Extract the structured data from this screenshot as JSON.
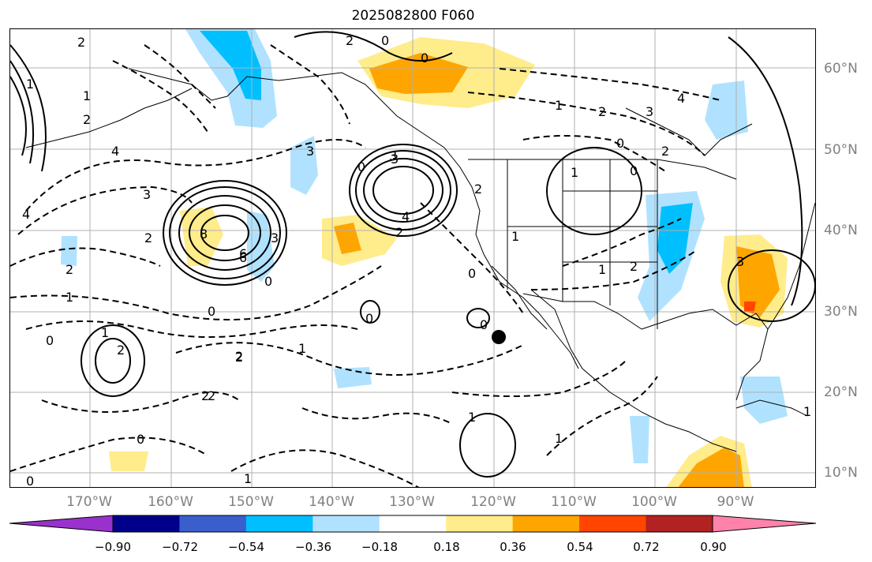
{
  "title": "2025082800 F060",
  "lat_labels": [
    "60°N",
    "50°N",
    "40°N",
    "30°N",
    "20°N",
    "10°N"
  ],
  "lon_labels": [
    "170°W",
    "160°W",
    "150°W",
    "140°W",
    "130°W",
    "120°W",
    "110°W",
    "100°W",
    "90°W"
  ],
  "colorbar": {
    "colors": [
      "#9932cc",
      "#00008b",
      "#3a5fcd",
      "#00bfff",
      "#b0e2ff",
      "#ffffff",
      "#ffec8b",
      "#ffa500",
      "#ff4500",
      "#b22222",
      "#ff82ab"
    ],
    "tick_labels": [
      "−0.90",
      "−0.72",
      "−0.54",
      "−0.36",
      "−0.18",
      "0.18",
      "0.36",
      "0.54",
      "0.72",
      "0.90"
    ]
  },
  "contour_labels": [
    "1",
    "2",
    "1",
    "2",
    "4",
    "6",
    "3",
    "2",
    "1",
    "0",
    "2",
    "4",
    "1",
    "2",
    "3",
    "2",
    "0",
    "3",
    "8",
    "6",
    "0",
    "3",
    "0",
    "2",
    "2",
    "3",
    "4",
    "0",
    "2",
    "2",
    "0",
    "1",
    "0",
    "1",
    "2",
    "0",
    "2",
    "1",
    "0",
    "1",
    "1",
    "0",
    "0",
    "0",
    "1",
    "0",
    "2",
    "3",
    "4",
    "2",
    "1",
    "1",
    "2",
    "1",
    "3"
  ]
}
